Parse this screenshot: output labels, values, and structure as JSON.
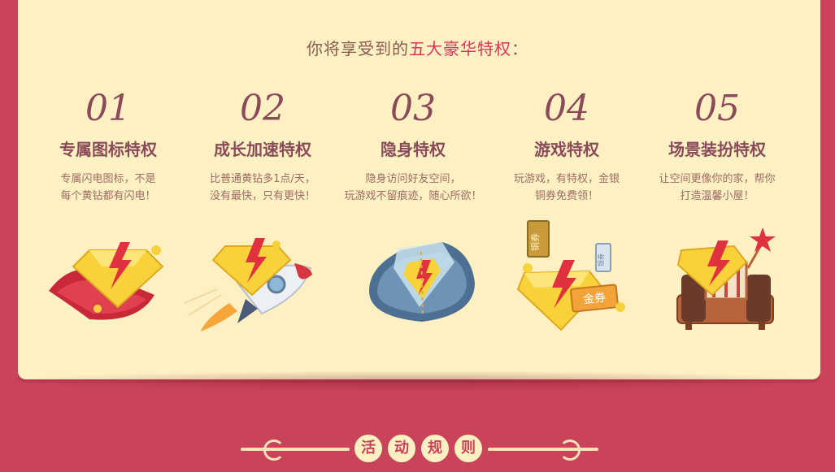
{
  "headline": {
    "prefix": "你将享受到的",
    "highlight": "五大豪华特权",
    "suffix": "："
  },
  "features": [
    {
      "num": "01",
      "title": "专属图标特权",
      "desc1": "专属闪电图标，不是",
      "desc2": "每个黄钻都有闪电！"
    },
    {
      "num": "02",
      "title": "成长加速特权",
      "desc1": "比普通黄钻多1点/天，",
      "desc2": "没有最快，只有更快！"
    },
    {
      "num": "03",
      "title": "隐身特权",
      "desc1": "隐身访问好友空间，",
      "desc2": "玩游戏不留痕迹，随心所欲！"
    },
    {
      "num": "04",
      "title": "游戏特权",
      "desc1": "玩游戏，有特权，金银",
      "desc2": "铜券免费领！"
    },
    {
      "num": "05",
      "title": "场景装扮特权",
      "desc1": "让空间更像你的家，帮你",
      "desc2": "打造温馨小屋！"
    }
  ],
  "tickets": {
    "copper": "铜券",
    "silver": "银券",
    "gold": "金券"
  },
  "rules": {
    "chars": [
      "活",
      "动",
      "规",
      "则"
    ]
  },
  "colors": {
    "background": "#c9435a",
    "card": "#fdf1c4",
    "accent": "#d9345a",
    "gem": "#f8d23a"
  }
}
